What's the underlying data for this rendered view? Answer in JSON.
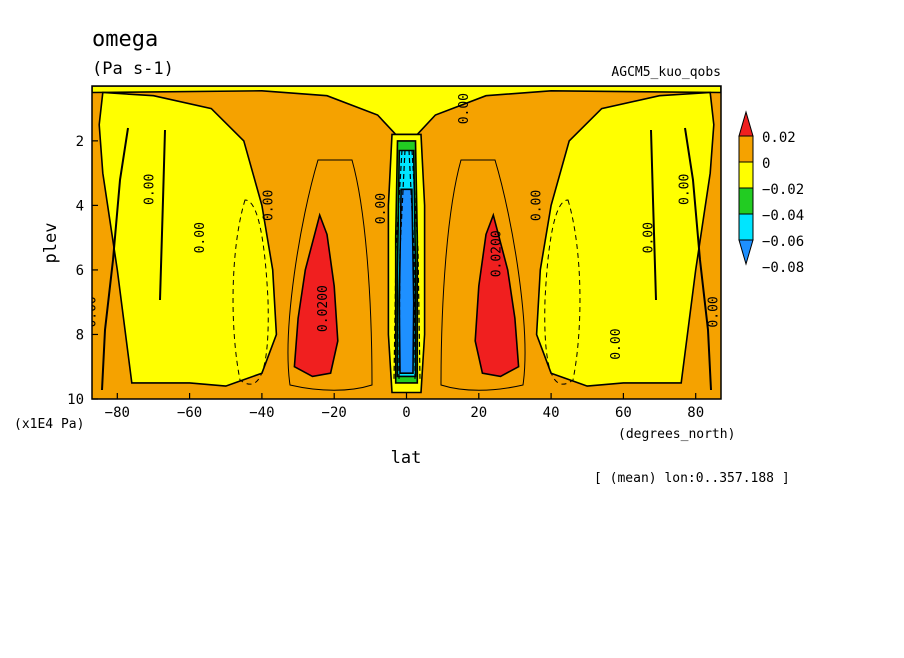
{
  "chart_data": {
    "type": "heatmap",
    "title": "omega",
    "units": "(Pa s-1)",
    "experiment": "AGCM5_kuo_qobs",
    "xlabel": "lat",
    "x_units": "(degrees_north)",
    "ylabel": "plev",
    "y_units": "(x1E4 Pa)",
    "footnote": "[ (mean) lon:0..357.188 ]",
    "xlim": [
      -87,
      87
    ],
    "ylim": [
      10,
      0.3
    ],
    "x_ticks": [
      -80,
      -60,
      -40,
      -20,
      0,
      20,
      40,
      60,
      80
    ],
    "y_ticks": [
      2,
      4,
      6,
      8,
      10
    ],
    "x_tick_labels": [
      "−80",
      "−60",
      "−40",
      "−20",
      "0",
      "20",
      "40",
      "60",
      "80"
    ],
    "y_tick_labels": [
      "2",
      "4",
      "6",
      "8",
      "10"
    ],
    "levels": [
      {
        "label": "0.02",
        "color": "#f01f1f"
      },
      {
        "label": "0",
        "color": "#f5a200"
      },
      {
        "label": "−0.02",
        "color": "#ffff00"
      },
      {
        "label": "−0.04",
        "color": "#22cc22"
      },
      {
        "label": "−0.06",
        "color": "#00e5ff"
      },
      {
        "label": "−0.08",
        "color": "#1e90ff"
      }
    ],
    "background_color": "#f5a200",
    "regions": [
      {
        "name": "upper-levels",
        "color": "#ffff00",
        "poly": [
          [
            -87,
            0.3
          ],
          [
            87,
            0.3
          ],
          [
            87,
            0.5
          ],
          [
            40,
            0.45
          ],
          [
            22,
            0.6
          ],
          [
            8,
            1.2
          ],
          [
            3,
            1.8
          ],
          [
            -3,
            1.8
          ],
          [
            -8,
            1.2
          ],
          [
            -22,
            0.6
          ],
          [
            -40,
            0.45
          ],
          [
            -87,
            0.5
          ]
        ]
      },
      {
        "name": "sh-subtropic-descent",
        "color": "#ffff00",
        "poly": [
          [
            -84,
            0.5
          ],
          [
            -85,
            1.5
          ],
          [
            -84,
            3
          ],
          [
            -80,
            6
          ],
          [
            -76,
            9.5
          ],
          [
            -60,
            9.5
          ],
          [
            -50,
            9.6
          ],
          [
            -40,
            9.2
          ],
          [
            -36,
            8
          ],
          [
            -37,
            6
          ],
          [
            -40,
            4
          ],
          [
            -45,
            2
          ],
          [
            -54,
            1
          ],
          [
            -70,
            0.6
          ]
        ]
      },
      {
        "name": "nh-subtropic-descent",
        "color": "#ffff00",
        "poly": [
          [
            84,
            0.5
          ],
          [
            85,
            1.5
          ],
          [
            84,
            3
          ],
          [
            80,
            6
          ],
          [
            76,
            9.5
          ],
          [
            60,
            9.5
          ],
          [
            50,
            9.6
          ],
          [
            40,
            9.2
          ],
          [
            36,
            8
          ],
          [
            37,
            6
          ],
          [
            40,
            4
          ],
          [
            45,
            2
          ],
          [
            54,
            1
          ],
          [
            70,
            0.6
          ]
        ]
      },
      {
        "name": "equatorial-ascent",
        "color": "#ffff00",
        "poly": [
          [
            -4,
            1.8
          ],
          [
            4,
            1.8
          ],
          [
            5,
            4
          ],
          [
            5,
            8
          ],
          [
            4,
            9.8
          ],
          [
            -4,
            9.8
          ],
          [
            -5,
            8
          ],
          [
            -5,
            4
          ]
        ]
      },
      {
        "name": "eq-green",
        "color": "#22cc22",
        "poly": [
          [
            -2.5,
            2
          ],
          [
            2.5,
            2
          ],
          [
            3,
            5
          ],
          [
            3,
            9.5
          ],
          [
            -3,
            9.5
          ],
          [
            -3,
            5
          ]
        ]
      },
      {
        "name": "eq-cyan",
        "color": "#00e5ff",
        "poly": [
          [
            -2,
            2.3
          ],
          [
            2,
            2.3
          ],
          [
            2.5,
            6
          ],
          [
            2.5,
            9.3
          ],
          [
            -2.5,
            9.3
          ],
          [
            -2.5,
            6
          ]
        ]
      },
      {
        "name": "eq-blue",
        "color": "#1e90ff",
        "poly": [
          [
            -1.5,
            3.5
          ],
          [
            1.5,
            3.5
          ],
          [
            2,
            7
          ],
          [
            1.8,
            9.2
          ],
          [
            -1.8,
            9.2
          ],
          [
            -2,
            7
          ]
        ]
      },
      {
        "name": "sh-positive-max",
        "color": "#f01f1f",
        "poly": [
          [
            -24,
            4.3
          ],
          [
            -22,
            4.9
          ],
          [
            -20,
            6.5
          ],
          [
            -19,
            8.2
          ],
          [
            -21,
            9.2
          ],
          [
            -26,
            9.3
          ],
          [
            -31,
            9
          ],
          [
            -30,
            7.5
          ],
          [
            -28,
            6
          ]
        ]
      },
      {
        "name": "nh-positive-max",
        "color": "#f01f1f",
        "poly": [
          [
            24,
            4.3
          ],
          [
            22,
            4.9
          ],
          [
            20,
            6.5
          ],
          [
            19,
            8.2
          ],
          [
            21,
            9.2
          ],
          [
            26,
            9.3
          ],
          [
            31,
            9
          ],
          [
            30,
            7.5
          ],
          [
            28,
            6
          ]
        ]
      }
    ],
    "contour_labels": [
      {
        "text": "0.00",
        "x": -86,
        "y": 7.3
      },
      {
        "text": "0.00",
        "x": -70,
        "y": 3.5
      },
      {
        "text": "0.00",
        "x": -56,
        "y": 5.0
      },
      {
        "text": "0.00",
        "x": -37,
        "y": 4.0
      },
      {
        "text": "0.0200",
        "x": -22,
        "y": 7.2
      },
      {
        "text": "0.00",
        "x": -6,
        "y": 4.1
      },
      {
        "text": "0.00",
        "x": 17,
        "y": 1.0
      },
      {
        "text": "0.0200",
        "x": 26,
        "y": 5.5
      },
      {
        "text": "0.00",
        "x": 37,
        "y": 4.0
      },
      {
        "text": "0.00",
        "x": 68,
        "y": 5.0
      },
      {
        "text": "0.00",
        "x": 78,
        "y": 3.5
      },
      {
        "text": "0.00",
        "x": 86,
        "y": 7.3
      },
      {
        "text": "0.00",
        "x": 59,
        "y": 8.3
      }
    ]
  }
}
